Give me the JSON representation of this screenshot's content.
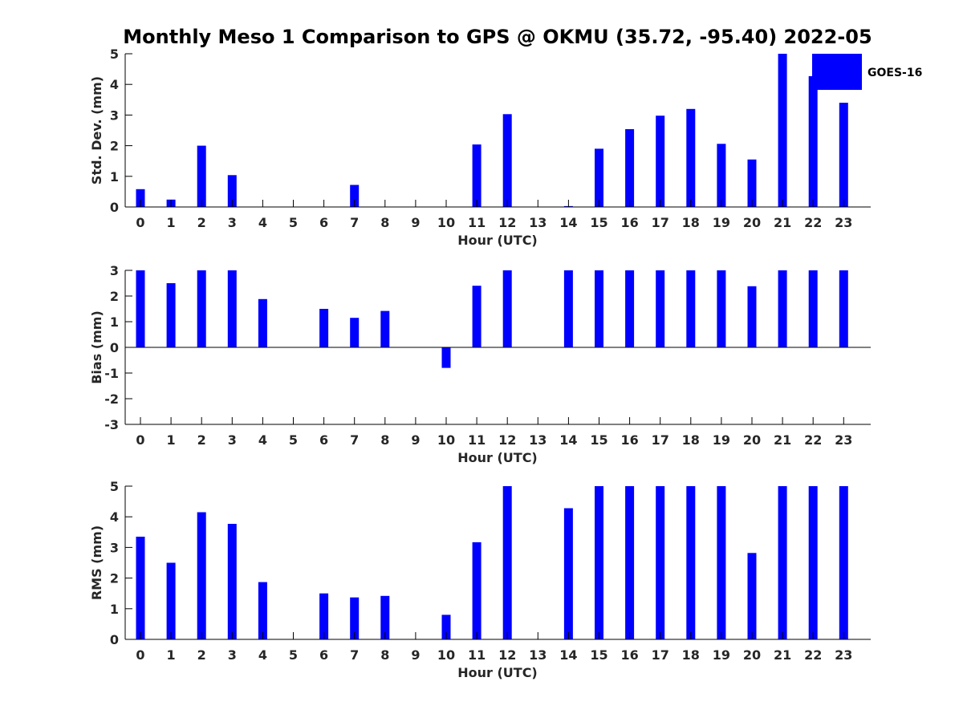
{
  "title": "Monthly Meso 1 Comparison to GPS @ OKMU (35.72, -95.40) 2022-05",
  "legend": {
    "label": "GOES-16",
    "placement": "top-right",
    "color": "#0000ff"
  },
  "chart_data": [
    {
      "type": "bar",
      "name": "std-dev",
      "xlabel": "Hour (UTC)",
      "ylabel": "Std. Dev. (mm)",
      "ylim": [
        0,
        5
      ],
      "yticks": [
        0,
        1,
        2,
        3,
        4,
        5
      ],
      "yticklabels": [
        "0",
        "1",
        "2",
        "3",
        "4",
        "5"
      ],
      "categories": [
        "0",
        "1",
        "2",
        "3",
        "4",
        "5",
        "6",
        "7",
        "8",
        "9",
        "10",
        "11",
        "12",
        "13",
        "14",
        "15",
        "16",
        "17",
        "18",
        "19",
        "20",
        "21",
        "22",
        "23"
      ],
      "series": [
        {
          "color": "#0000ff",
          "values": [
            0.58,
            0.24,
            2.0,
            1.04,
            null,
            null,
            null,
            0.72,
            null,
            null,
            null,
            2.04,
            3.03,
            null,
            0.03,
            1.9,
            2.54,
            2.98,
            3.2,
            2.06,
            1.55,
            5.0,
            4.27,
            3.4
          ]
        }
      ]
    },
    {
      "type": "bar",
      "name": "bias",
      "xlabel": "Hour (UTC)",
      "ylabel": "Bias (mm)",
      "ylim": [
        -3,
        3
      ],
      "yticks": [
        -3,
        -2,
        -1,
        0,
        1,
        2,
        3
      ],
      "yticklabels": [
        "-3",
        "-2",
        "-1",
        "0",
        "1",
        "2",
        "3"
      ],
      "zero_line": true,
      "categories": [
        "0",
        "1",
        "2",
        "3",
        "4",
        "5",
        "6",
        "7",
        "8",
        "9",
        "10",
        "11",
        "12",
        "13",
        "14",
        "15",
        "16",
        "17",
        "18",
        "19",
        "20",
        "21",
        "22",
        "23"
      ],
      "series": [
        {
          "color": "#0000ff",
          "values": [
            3.0,
            2.5,
            3.0,
            3.0,
            1.88,
            null,
            1.5,
            1.15,
            1.42,
            null,
            -0.8,
            2.4,
            3.0,
            null,
            3.0,
            3.0,
            3.0,
            3.0,
            3.0,
            3.0,
            2.38,
            3.0,
            3.0,
            3.0
          ]
        }
      ]
    },
    {
      "type": "bar",
      "name": "rms",
      "xlabel": "Hour (UTC)",
      "ylabel": "RMS (mm)",
      "ylim": [
        0,
        5
      ],
      "yticks": [
        0,
        1,
        2,
        3,
        4,
        5
      ],
      "yticklabels": [
        "0",
        "1",
        "2",
        "3",
        "4",
        "5"
      ],
      "categories": [
        "0",
        "1",
        "2",
        "3",
        "4",
        "5",
        "6",
        "7",
        "8",
        "9",
        "10",
        "11",
        "12",
        "13",
        "14",
        "15",
        "16",
        "17",
        "18",
        "19",
        "20",
        "21",
        "22",
        "23"
      ],
      "series": [
        {
          "color": "#0000ff",
          "values": [
            3.35,
            2.5,
            4.15,
            3.77,
            1.87,
            null,
            1.5,
            1.37,
            1.42,
            null,
            0.8,
            3.17,
            5.0,
            null,
            4.28,
            5.0,
            5.0,
            5.0,
            5.0,
            5.0,
            2.82,
            5.0,
            5.0,
            5.0
          ]
        }
      ]
    }
  ]
}
